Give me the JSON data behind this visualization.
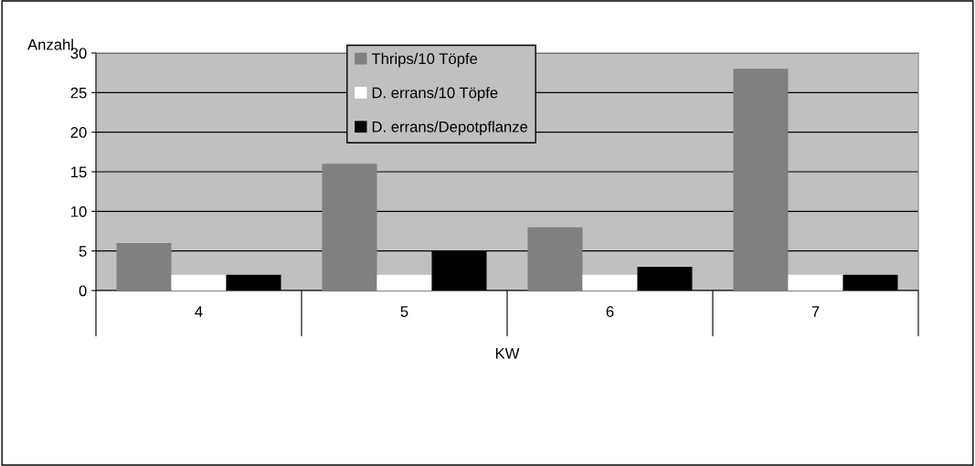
{
  "chart_data": {
    "type": "bar",
    "ylabel": "Anzahl",
    "xlabel": "KW",
    "categories": [
      "4",
      "5",
      "6",
      "7"
    ],
    "series": [
      {
        "name": "Thrips/10 Töpfe",
        "color": "#808080",
        "values": [
          6,
          16,
          8,
          28
        ]
      },
      {
        "name": "D. errans/10 Töpfe",
        "color": "#ffffff",
        "values": [
          2,
          2,
          2,
          2
        ]
      },
      {
        "name": "D. errans/Depotpflanze",
        "color": "#000000",
        "values": [
          2,
          5,
          3,
          2
        ]
      }
    ],
    "ylim": [
      0,
      30
    ],
    "yticks": [
      0,
      5,
      10,
      15,
      20,
      25,
      30
    ],
    "grid": "y",
    "legend": "top"
  }
}
